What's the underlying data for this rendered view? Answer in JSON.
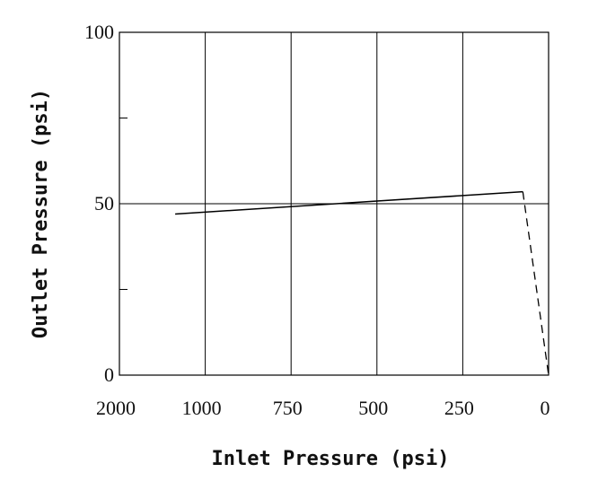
{
  "chart_data": {
    "type": "line",
    "xlabel": "Inlet Pressure (psi)",
    "ylabel": "Outlet Pressure (psi)",
    "x_tick_labels": [
      "2000",
      "1000",
      "750",
      "500",
      "250",
      "0"
    ],
    "y_tick_labels": [
      "0",
      "50",
      "100"
    ],
    "ylim": [
      0,
      100
    ],
    "grid": {
      "vertical": true,
      "horizontal_at": [
        50
      ]
    },
    "series": [
      {
        "style": "solid",
        "points": [
          {
            "x": 1350,
            "y": 47
          },
          {
            "x": 75,
            "y": 53.5
          }
        ]
      },
      {
        "style": "dashed",
        "points": [
          {
            "x": 75,
            "y": 53.5
          },
          {
            "x": 0,
            "y": 0
          }
        ]
      }
    ]
  }
}
